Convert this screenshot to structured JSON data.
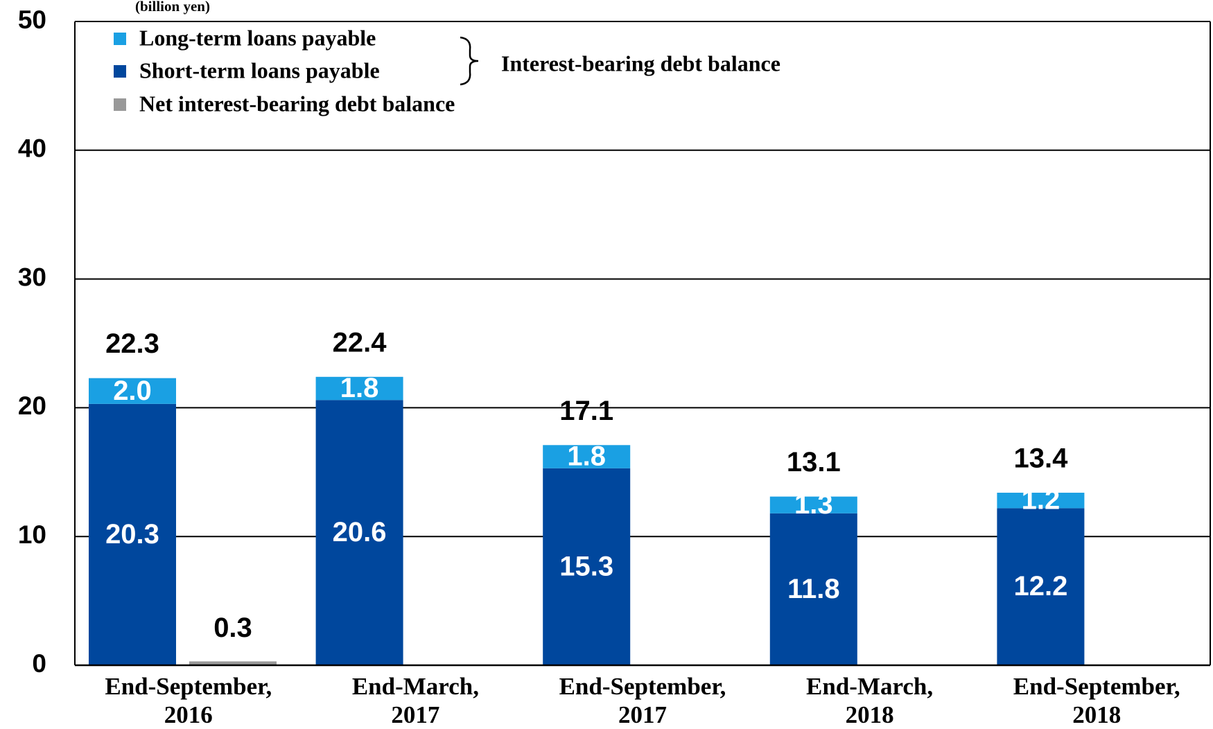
{
  "chart_data": {
    "type": "stacked_bar",
    "unit": "(billion yen)",
    "annotation": "Interest-bearing debt balance",
    "categories": [
      [
        "End-September,",
        "2016"
      ],
      [
        "End-March,",
        "2017"
      ],
      [
        "End-September,",
        "2017"
      ],
      [
        "End-March,",
        "2018"
      ],
      [
        "End-September,",
        "2018"
      ]
    ],
    "series": [
      {
        "name": "Short-term loans payable",
        "color": "#00479d",
        "values": [
          20.3,
          20.6,
          15.3,
          11.8,
          12.2
        ],
        "value_labels": [
          "20.3",
          "20.6",
          "15.3",
          "11.8",
          "12.2"
        ]
      },
      {
        "name": "Long-term loans payable",
        "color": "#1aa0e3",
        "values": [
          2.0,
          1.8,
          1.8,
          1.3,
          1.2
        ],
        "value_labels": [
          "2.0",
          "1.8",
          "1.8",
          "1.3",
          "1.2"
        ]
      }
    ],
    "totals": [
      22.3,
      22.4,
      17.1,
      13.1,
      13.4
    ],
    "net_series": {
      "name": "Net interest-bearing debt balance",
      "color": "#999999",
      "values": [
        0.3,
        null,
        null,
        null,
        null
      ]
    },
    "ylim": [
      0,
      50
    ],
    "yticks": [
      0,
      10,
      20,
      30,
      40,
      50
    ],
    "grid": true
  }
}
